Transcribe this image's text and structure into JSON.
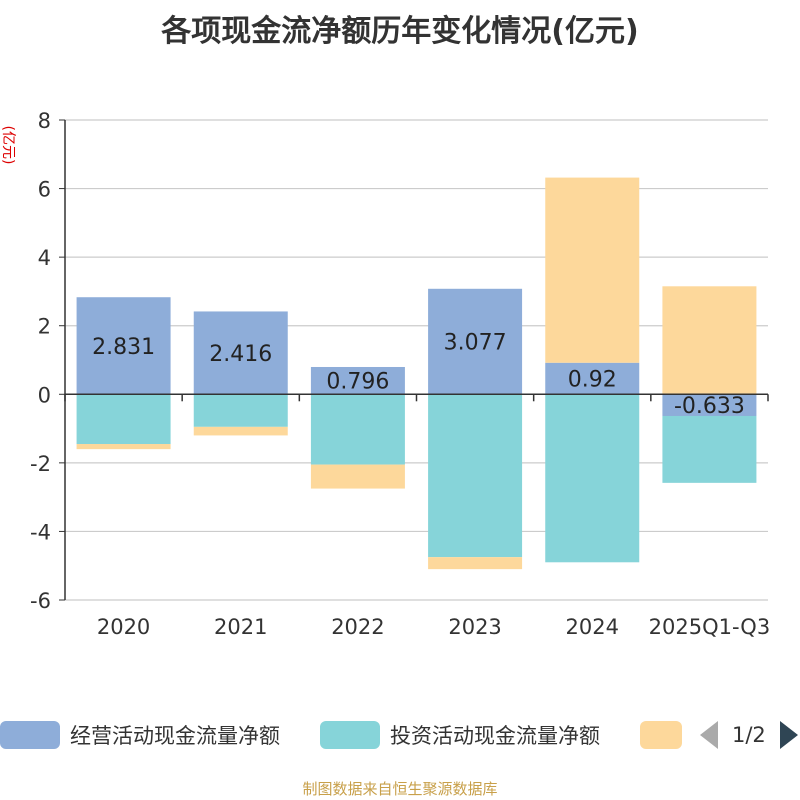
{
  "chart_data": {
    "type": "bar",
    "stacked": true,
    "title": "各项现金流净额历年变化情况(亿元)",
    "ylabel": "(亿元)",
    "xlabel": "",
    "ylim": [
      -6,
      8
    ],
    "yticks": [
      -6,
      -4,
      -2,
      0,
      2,
      4,
      6,
      8
    ],
    "grid": true,
    "categories": [
      "2020",
      "2021",
      "2022",
      "2023",
      "2024",
      "2025Q1-Q3"
    ],
    "series": [
      {
        "name": "经营活动现金流量净额",
        "color": "#8eadd9",
        "values": [
          2.831,
          2.416,
          0.796,
          3.077,
          0.92,
          -0.633
        ],
        "show_labels": true
      },
      {
        "name": "投资活动现金流量净额",
        "color": "#86d4d9",
        "values": [
          -1.45,
          -0.95,
          -2.05,
          -4.75,
          -4.9,
          -1.95
        ],
        "show_labels": false
      },
      {
        "name": "",
        "color": "#fdd89b",
        "values": [
          -0.15,
          -0.25,
          -0.7,
          -0.35,
          5.4,
          3.15
        ],
        "show_labels": false
      }
    ],
    "data_labels": [
      "2.831",
      "2.416",
      "0.796",
      "3.077",
      "0.92",
      "-0.633"
    ],
    "legend_position": "bottom",
    "legend_page": "1/2"
  },
  "source": "制图数据来自恒生聚源数据库"
}
